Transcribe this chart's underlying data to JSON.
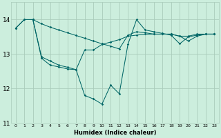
{
  "xlabel": "Humidex (Indice chaleur)",
  "bg_color": "#cceedd",
  "grid_color": "#aaccbb",
  "line_color": "#006666",
  "xlim": [
    -0.5,
    23.5
  ],
  "ylim": [
    11,
    14.5
  ],
  "yticks": [
    11,
    12,
    13,
    14
  ],
  "xtick_labels": [
    "0",
    "1",
    "2",
    "3",
    "4",
    "5",
    "6",
    "7",
    "8",
    "9",
    "10",
    "11",
    "12",
    "13",
    "14",
    "15",
    "16",
    "17",
    "18",
    "19",
    "20",
    "21",
    "22",
    "23"
  ],
  "curve1_x": [
    0,
    1,
    2,
    3,
    4,
    5,
    6,
    7,
    8,
    9,
    10,
    11,
    12,
    13,
    14,
    15,
    16,
    17,
    18,
    19,
    20,
    21,
    22,
    23
  ],
  "curve1_y": [
    13.75,
    14.0,
    14.0,
    13.88,
    13.78,
    13.7,
    13.62,
    13.54,
    13.46,
    13.38,
    13.3,
    13.23,
    13.15,
    13.55,
    13.65,
    13.62,
    13.58,
    13.58,
    13.58,
    13.52,
    13.52,
    13.58,
    13.58,
    13.58
  ],
  "curve2_x": [
    0,
    1,
    2,
    3,
    4,
    5,
    6,
    7,
    8,
    9,
    10,
    11,
    12,
    13,
    14,
    15,
    16,
    17,
    18,
    19,
    20,
    21,
    22,
    23
  ],
  "curve2_y": [
    13.75,
    14.0,
    14.0,
    12.88,
    12.68,
    12.63,
    12.57,
    12.55,
    11.8,
    11.7,
    11.55,
    12.1,
    11.85,
    13.28,
    14.0,
    13.7,
    13.65,
    13.6,
    13.55,
    13.3,
    13.5,
    13.55,
    13.58,
    13.58
  ],
  "curve3_x": [
    2,
    3,
    4,
    5,
    6,
    7,
    8,
    9,
    10,
    11,
    12,
    13,
    14,
    15,
    16,
    17,
    18,
    19,
    20,
    21,
    22,
    23
  ],
  "curve3_y": [
    14.0,
    12.92,
    12.8,
    12.68,
    12.62,
    12.55,
    13.12,
    13.12,
    13.28,
    13.35,
    13.42,
    13.52,
    13.55,
    13.58,
    13.58,
    13.58,
    13.58,
    13.52,
    13.38,
    13.52,
    13.58,
    13.58
  ]
}
